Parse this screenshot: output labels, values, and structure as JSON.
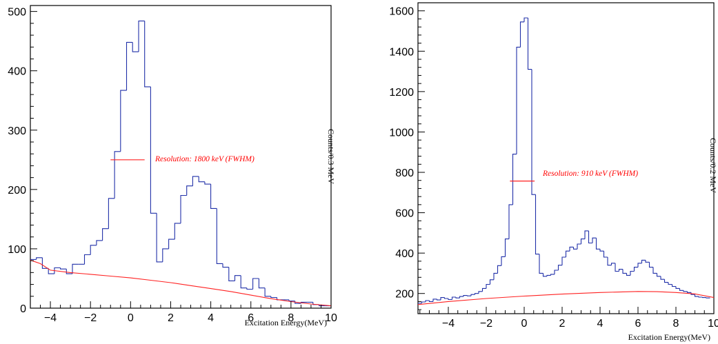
{
  "chart_data": [
    {
      "type": "histogram",
      "xlabel": "Excitation Energy(MeV)",
      "ylabel": "Counts/0.3 MeV",
      "xlim": [
        -5,
        10
      ],
      "ylim": [
        0,
        510
      ],
      "xticks": [
        -4,
        -2,
        0,
        2,
        4,
        6,
        8,
        10
      ],
      "xtick_labels": [
        "−4",
        "−2",
        "0",
        "2",
        "4",
        "6",
        "8",
        "10"
      ],
      "yticks": [
        0,
        100,
        200,
        300,
        400,
        500
      ],
      "ytick_labels": [
        "0",
        "100",
        "200",
        "300",
        "400",
        "500"
      ],
      "bin_width": 0.3,
      "histogram": {
        "color": "#1f2fa8",
        "bin_edges_start": -5,
        "counts": [
          82,
          85,
          67,
          58,
          68,
          66,
          58,
          74,
          74,
          90,
          106,
          114,
          134,
          185,
          264,
          367,
          448,
          432,
          484,
          373,
          160,
          78,
          100,
          116,
          143,
          190,
          206,
          222,
          213,
          209,
          168,
          75,
          69,
          46,
          55,
          34,
          32,
          50,
          34,
          20,
          18,
          14,
          14,
          12,
          8,
          10,
          10,
          6,
          4,
          4
        ]
      },
      "background_fit": {
        "color": "#ff2020",
        "x": [
          -5,
          -4.5,
          -4,
          -3,
          -2,
          -1,
          0,
          1,
          2,
          3,
          4,
          5,
          6,
          7,
          8,
          9,
          10
        ],
        "y": [
          81,
          75,
          64,
          60,
          57,
          54,
          51,
          47,
          43,
          38,
          33,
          28,
          22,
          16,
          11,
          7,
          4
        ]
      },
      "resolution_marker": {
        "color": "#ff2020",
        "x_start": -1.0,
        "x_end": 0.7,
        "y": 250,
        "label": "Resolution: 1800 keV (FWHM)"
      }
    },
    {
      "type": "histogram",
      "xlabel": "Excitation Energy(MeV)",
      "ylabel": "Counts/0.2 MeV",
      "xlim": [
        -5.6,
        10
      ],
      "ylim": [
        100,
        1640
      ],
      "xticks": [
        -4,
        -2,
        0,
        2,
        4,
        6,
        8,
        10
      ],
      "xtick_labels": [
        "−4",
        "−2",
        "0",
        "2",
        "4",
        "6",
        "8",
        "10"
      ],
      "yticks": [
        200,
        400,
        600,
        800,
        1000,
        1200,
        1400,
        1600
      ],
      "ytick_labels": [
        "200",
        "400",
        "600",
        "800",
        "1000",
        "1200",
        "1400",
        "1600"
      ],
      "bin_width": 0.2,
      "histogram": {
        "color": "#1f2fa8",
        "bin_edges_start": -5.6,
        "counts": [
          152,
          158,
          165,
          160,
          172,
          168,
          180,
          175,
          170,
          182,
          178,
          185,
          190,
          188,
          195,
          200,
          210,
          225,
          245,
          268,
          300,
          338,
          382,
          470,
          640,
          890,
          1420,
          1545,
          1565,
          1310,
          690,
          395,
          300,
          285,
          290,
          295,
          315,
          340,
          380,
          410,
          430,
          420,
          445,
          470,
          510,
          450,
          475,
          420,
          410,
          380,
          340,
          350,
          310,
          320,
          300,
          290,
          310,
          330,
          350,
          365,
          355,
          330,
          300,
          285,
          270,
          255,
          245,
          235,
          225,
          215,
          210,
          205,
          195,
          185,
          182,
          180,
          178
        ]
      },
      "background_fit": {
        "color": "#ff2020",
        "x": [
          -5.6,
          -4,
          -2,
          0,
          2,
          4,
          6,
          7,
          8,
          9,
          10
        ],
        "y": [
          145,
          160,
          175,
          187,
          197,
          205,
          210,
          209,
          205,
          198,
          180
        ]
      },
      "resolution_marker": {
        "color": "#ff2020",
        "x_start": -0.75,
        "x_end": 0.55,
        "y": 757,
        "label": "Resolution: 910 keV (FWHM)"
      }
    }
  ]
}
